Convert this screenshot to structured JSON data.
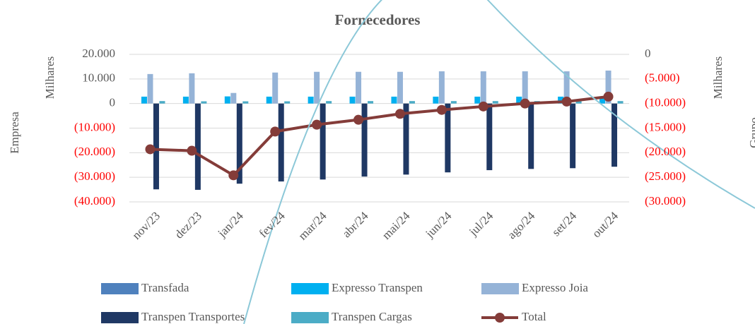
{
  "chart_data": {
    "type": "bar",
    "title": "Fornecedores",
    "y_label": "Empresa",
    "y_unit": "Milhares",
    "y2_label": "Grupo",
    "y2_unit": "Milhares",
    "categories": [
      "nov/23",
      "dez/23",
      "jan/24",
      "fev/24",
      "mar/24",
      "abr/24",
      "mai/24",
      "jun/24",
      "jul/24",
      "ago/24",
      "set/24",
      "out/24"
    ],
    "series": [
      {
        "name": "Transfada",
        "color": "#4f81bd",
        "values": [
          0,
          0,
          0,
          0,
          0,
          0,
          0,
          0,
          0,
          0,
          0,
          0
        ]
      },
      {
        "name": "Expresso Transpen",
        "color": "#00b0f0",
        "values": [
          2800,
          2800,
          2900,
          2800,
          2800,
          2800,
          2800,
          2800,
          2800,
          2800,
          2800,
          2800
        ]
      },
      {
        "name": "Expresso Joia",
        "color": "#95b3d7",
        "values": [
          12000,
          12300,
          4300,
          12600,
          12900,
          12900,
          12900,
          13100,
          13100,
          13100,
          13100,
          13400
        ]
      },
      {
        "name": "Transpen Transportes",
        "color": "#1f3864",
        "values": [
          -34900,
          -35100,
          -32600,
          -31700,
          -30900,
          -29700,
          -28900,
          -28000,
          -27100,
          -26600,
          -26300,
          -25700
        ]
      },
      {
        "name": "Transpen Cargas",
        "color": "#4bacc6",
        "values": [
          1000,
          900,
          900,
          900,
          1000,
          1000,
          1000,
          1000,
          1000,
          1000,
          1000,
          1000
        ]
      },
      {
        "name": "Total",
        "color": "#843c39",
        "type": "line",
        "axis": "y2",
        "values": [
          -19300,
          -19600,
          -24600,
          -15700,
          -14300,
          -13300,
          -12100,
          -11300,
          -10600,
          -10000,
          -9600,
          -8600
        ]
      }
    ],
    "ylim": [
      -40000,
      20000
    ],
    "yticks": [
      {
        "value": 20000,
        "label": "20.000"
      },
      {
        "value": 10000,
        "label": "10.000"
      },
      0,
      {
        "value": -10000,
        "label": "(10.000)"
      },
      {
        "value": -20000,
        "label": "(20.000)"
      },
      {
        "value": -30000,
        "label": "(30.000)"
      },
      {
        "value": -40000,
        "label": "(40.000)"
      }
    ],
    "y2lim": [
      -30000,
      0
    ],
    "y2ticks": [
      0,
      {
        "value": -5000,
        "label": "(5.000)"
      },
      {
        "value": -10000,
        "label": "(10.000)"
      },
      {
        "value": -15000,
        "label": "(15.000)"
      },
      {
        "value": -20000,
        "label": "(20.000)"
      },
      {
        "value": -25000,
        "label": "(25.000)"
      },
      {
        "value": -30000,
        "label": "(30.000)"
      }
    ],
    "negative_color": "#ff0000",
    "grid": true,
    "legend": "bottom"
  }
}
